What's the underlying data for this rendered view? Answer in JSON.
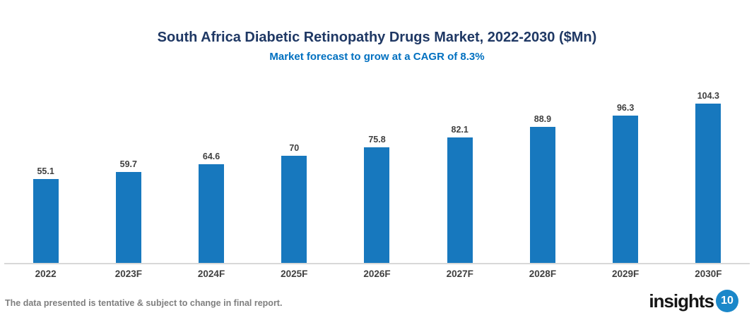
{
  "header": {
    "title": "South Africa Diabetic Retinopathy Drugs Market, 2022-2030 ($Mn)",
    "subtitle": "Market forecast to grow at a CAGR of 8.3%"
  },
  "chart_data": {
    "type": "bar",
    "title": "South Africa Diabetic Retinopathy Drugs Market, 2022-2030 ($Mn)",
    "subtitle": "Market forecast to grow at a CAGR of 8.3%",
    "categories": [
      "2022",
      "2023F",
      "2024F",
      "2025F",
      "2026F",
      "2027F",
      "2028F",
      "2029F",
      "2030F"
    ],
    "values": [
      55.1,
      59.7,
      64.6,
      70,
      75.8,
      82.1,
      88.9,
      96.3,
      104.3
    ],
    "xlabel": "",
    "ylabel": "",
    "ylim": [
      0,
      113
    ],
    "grid": false,
    "legend": false,
    "data_labels": true
  },
  "footer": {
    "disclaimer": "The data presented is tentative & subject to change in final report.",
    "logo_text": "insights",
    "logo_number": "10"
  },
  "colors": {
    "title": "#1F3864",
    "subtitle": "#0070C0",
    "bar": "#1778BE",
    "axis_line": "#D8D8D8",
    "tick_label": "#404040",
    "data_label": "#3F3F3F",
    "disclaimer": "#7F7F7F",
    "logo_circle": "#1B87C9",
    "logo_text": "#161616"
  }
}
